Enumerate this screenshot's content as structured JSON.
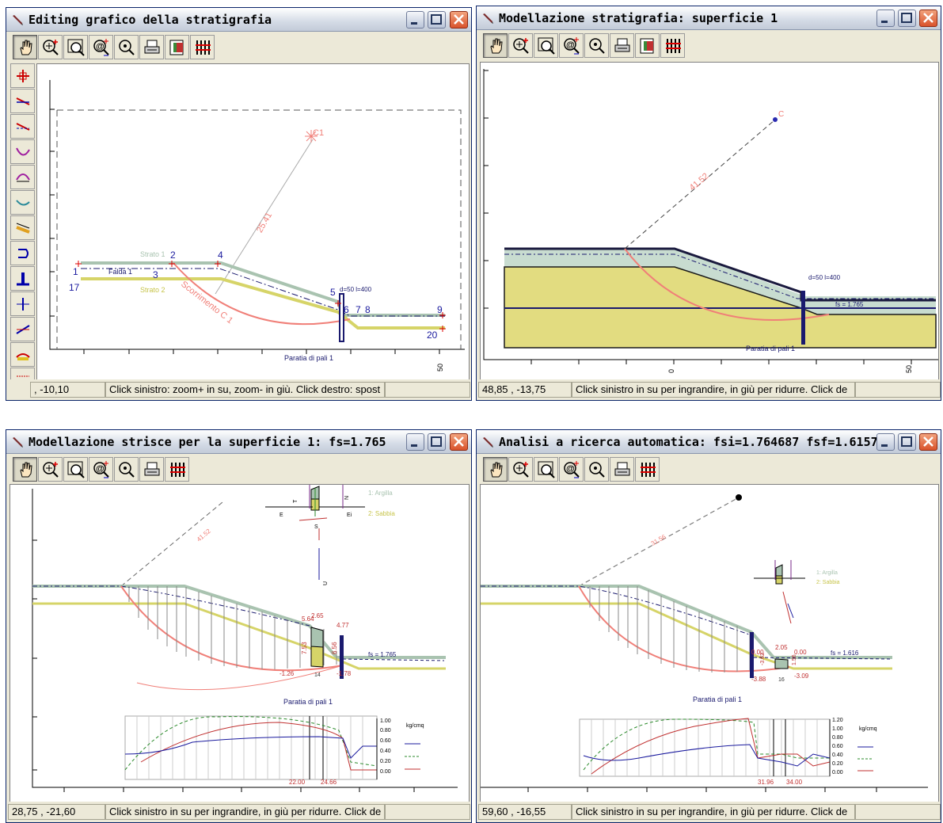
{
  "windows": {
    "w1": {
      "title": "Editing grafico della stratigrafia",
      "status_coords": ", -10,10",
      "status_message": "Click sinistro: zoom+ in su, zoom- in giù. Click destro: spost",
      "labels": {
        "c1": "C1",
        "radius": "25.41",
        "strato1": "Strato 1",
        "strato2": "Strato 2",
        "falda": "Falda 1",
        "scorrimento": "Scorrimento C 1",
        "paratia_spec": "d=50 l=400",
        "paratia_name": "Paratia di pali 1",
        "axis_tick": "50",
        "points": [
          "1",
          "17",
          "2",
          "3",
          "4",
          "5",
          "6",
          "7",
          "8",
          "9",
          "20"
        ]
      }
    },
    "w2": {
      "title": "Modellazione stratigrafia: superficie 1",
      "status_coords": "48,85 , -13,75",
      "status_message": "Click sinistro in su per ingrandire, in giù per ridurre. Click de",
      "labels": {
        "c": "C",
        "radius": "41.52",
        "paratia_spec": "d=50 l=400",
        "fs": "fs = 1.765",
        "paratia_name": "Paratia di pali 1",
        "axis_tick_0": "0",
        "axis_tick_50": "50"
      }
    },
    "w3": {
      "title": "Modellazione strisce per la superficie 1: fs=1.765",
      "status_coords": "28,75 , -21,60",
      "status_message": "Click sinistro in su per ingrandire, in giù per ridurre. Click de",
      "labels": {
        "radius": "41.52",
        "legend1": "1: Argilla",
        "legend2": "2: Sabbia",
        "fs": "fs = 1.765",
        "paratia_name": "Paratia di pali 1",
        "strip_top": "2.65",
        "left_top": "5.64",
        "right_top": "4.77",
        "left_h": "7.53",
        "right_h": "6.56",
        "left_bot": "-1.26",
        "right_bot": "-1.78",
        "strip_no": "14",
        "force_n": "N",
        "force_t": "T",
        "force_e": "E",
        "force_ei": "Ei",
        "force_u": "U",
        "force_s": "S",
        "unit": "kg/cmq",
        "y_ticks": [
          "1.00",
          "0.80",
          "0.60",
          "0.40",
          "0.20",
          "0.00"
        ],
        "mark1": "22.00",
        "mark2": "24.66"
      }
    },
    "w4": {
      "title": "Analisi a ricerca automatica: fsi=1.764687 fsf=1.615708",
      "status_coords": "59,60 , -16,55",
      "status_message": "Click sinistro in su per ingrandire, in giù per ridurre. Click de",
      "labels": {
        "radius": "31.56",
        "legend1": "1: Argilla",
        "legend2": "2: Sabbia",
        "fs": "fs = 1.616",
        "paratia_name": "Paratia di pali 1",
        "strip_top": "2.05",
        "v_left": "0.00",
        "v_right": "0.00",
        "v_l2": "-3.62",
        "v_l3": "-3.88",
        "v_r2": "-3.09",
        "v_h": "1.56",
        "strip_no": "16",
        "unit": "kg/cmq",
        "y_ticks": [
          "1.20",
          "1.00",
          "0.80",
          "0.60",
          "0.40",
          "0.20",
          "0.00"
        ],
        "mark1": "31.96",
        "mark2": "34.00"
      }
    }
  },
  "colors": {
    "title_bar": "#d4dbe6",
    "strato1": "#a9c3b0",
    "strato2": "#d6d468",
    "slip_surface": "#f07f78",
    "paratia": "#1a1a6e",
    "falda": "#1a1a6e"
  }
}
